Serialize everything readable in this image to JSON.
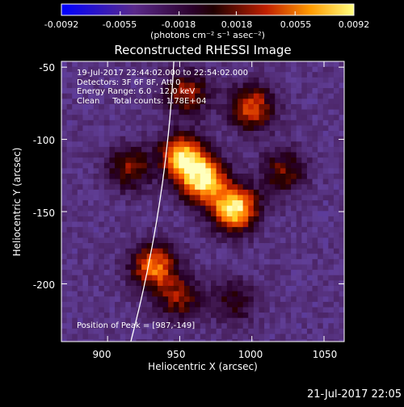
{
  "colorbar": {
    "ticks": [
      -0.0092,
      -0.0055,
      -0.0018,
      0.0018,
      0.0055,
      0.0092
    ],
    "tick_labels": [
      "-0.0092",
      "-0.0055",
      "-0.0018",
      "0.0018",
      "0.0055",
      "0.0092"
    ],
    "units": "(photons cm⁻² s⁻¹ asec⁻²)"
  },
  "chart_data": {
    "type": "heatmap",
    "title": "Reconstructed RHESSI Image",
    "xlabel": "Heliocentric X (arcsec)",
    "ylabel": "Heliocentric Y (arcsec)",
    "xlim": [
      868,
      1064
    ],
    "ylim": [
      -240,
      -46
    ],
    "x_ticks": [
      900,
      950,
      1000,
      1050
    ],
    "y_ticks": [
      -50,
      -100,
      -150,
      -200
    ],
    "x_tick_labels": [
      "900",
      "950",
      "1000",
      "1050"
    ],
    "y_tick_labels": [
      "-50",
      "-100",
      "-150",
      "-200"
    ],
    "color_range": [
      -0.0092,
      0.0092
    ],
    "colormap": "blue-purple-red-yellow-white",
    "peak": {
      "x": 987,
      "y": -149
    },
    "emission_sources": [
      {
        "x": 966,
        "y": -128,
        "peak_level": 0.93
      },
      {
        "x": 988,
        "y": -148,
        "peak_level": 1.0
      },
      {
        "x": 952,
        "y": -112,
        "peak_level": 0.85
      },
      {
        "x": 932,
        "y": -188,
        "peak_level": 0.72
      },
      {
        "x": 1000,
        "y": -78,
        "peak_level": 0.62
      },
      {
        "x": 955,
        "y": -68,
        "peak_level": 0.5
      },
      {
        "x": 915,
        "y": -120,
        "peak_level": 0.45
      },
      {
        "x": 950,
        "y": -210,
        "peak_level": 0.45
      },
      {
        "x": 1022,
        "y": -122,
        "peak_level": 0.42
      },
      {
        "x": 988,
        "y": -212,
        "peak_level": 0.32
      }
    ],
    "info_lines": [
      "19-Jul-2017 22:44:02.000 to 22:54:02.000",
      "Detectors: 3F 6F 8F, Att 0",
      "Energy Range: 6.0 - 12.0 keV",
      "Clean     Total counts: 1.78E+04"
    ],
    "peak_label": "Position of Peak = [987,-149]"
  },
  "footer": {
    "timestamp": "21-Jul-2017 22:05"
  }
}
